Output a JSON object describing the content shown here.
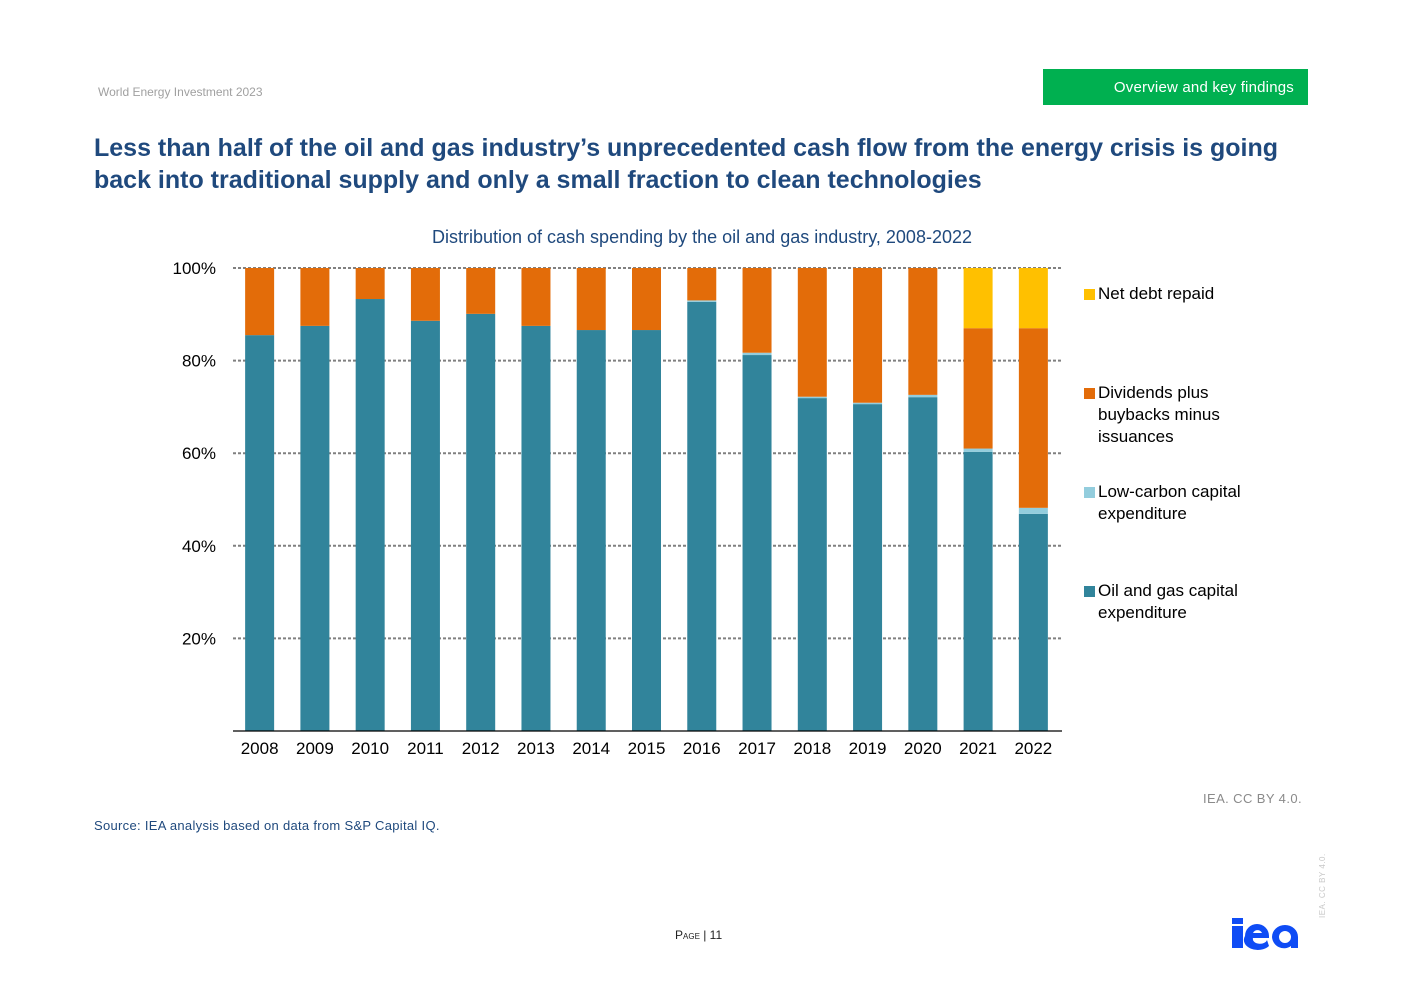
{
  "header": {
    "report_name": "World Energy Investment 2023",
    "section_tab": "Overview and key findings"
  },
  "title": "Less than half of the oil and gas industry’s unprecedented cash flow from the energy crisis is going back into traditional supply and only a small fraction to clean technologies",
  "chart_data": {
    "type": "bar",
    "stacked": true,
    "title": "Distribution of cash spending by the oil and gas industry, 2008-2022",
    "xlabel": "",
    "ylabel": "",
    "ylim": [
      0,
      100
    ],
    "yticks": [
      20,
      40,
      60,
      80,
      100
    ],
    "ytick_labels": [
      "20%",
      "40%",
      "60%",
      "80%",
      "100%"
    ],
    "grid": true,
    "legend_position": "right",
    "categories": [
      "2008",
      "2009",
      "2010",
      "2011",
      "2012",
      "2013",
      "2014",
      "2015",
      "2016",
      "2017",
      "2018",
      "2019",
      "2020",
      "2021",
      "2022"
    ],
    "series": [
      {
        "name": "Oil and gas capital expenditure",
        "color": "#31849b",
        "values": [
          85.5,
          87.5,
          93.3,
          88.6,
          90.1,
          87.5,
          86.6,
          86.6,
          92.7,
          81.2,
          71.9,
          70.6,
          72.1,
          60.3,
          46.9
        ]
      },
      {
        "name": "Low-carbon capital expenditure",
        "color": "#93cddd",
        "values": [
          0,
          0,
          0,
          0,
          0,
          0,
          0,
          0,
          0.3,
          0.5,
          0.3,
          0.3,
          0.5,
          0.7,
          1.3
        ]
      },
      {
        "name": "Dividends plus buybacks minus issuances",
        "color": "#e36c09",
        "values": [
          14.5,
          12.5,
          6.7,
          11.4,
          9.9,
          12.5,
          13.4,
          13.4,
          7.0,
          18.3,
          27.8,
          29.1,
          27.4,
          26.0,
          38.8
        ]
      },
      {
        "name": "Net debt repaid",
        "color": "#ffc000",
        "values": [
          0,
          0,
          0,
          0,
          0,
          0,
          0,
          0,
          0,
          0,
          0,
          0,
          0,
          13.0,
          13.0
        ]
      }
    ]
  },
  "legend": [
    {
      "label": "Net debt repaid",
      "color": "#ffc000"
    },
    {
      "label": "Dividends plus buybacks minus issuances",
      "color": "#e36c09"
    },
    {
      "label": "Low-carbon capital expenditure",
      "color": "#93cddd"
    },
    {
      "label": "Oil and gas capital expenditure",
      "color": "#31849b"
    }
  ],
  "footer": {
    "source": "Source: IEA analysis based on data from S&P Capital IQ.",
    "license": "IEA. CC BY 4.0.",
    "page_label": "Page | 11",
    "vertical_license": "IEA. CC BY 4.0.",
    "logo_text": "iea"
  },
  "colors": {
    "title": "#1f497d",
    "tab_bg": "#00b050",
    "logo": "#0f4cf5"
  }
}
